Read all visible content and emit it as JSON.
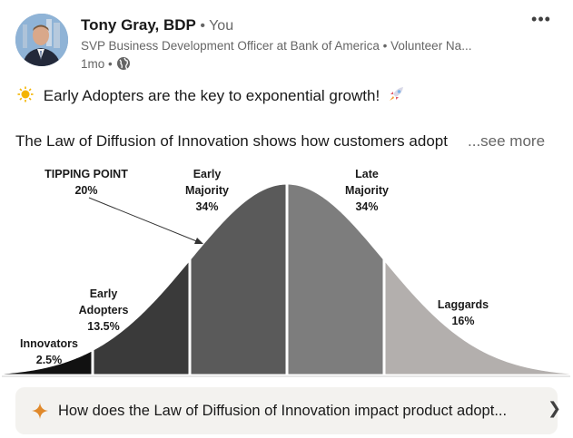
{
  "post": {
    "author_name": "Tony Gray, BDP",
    "author_relation": "• You",
    "headline": "SVP Business Development Officer at Bank of America • Volunteer Na...",
    "time": "1mo •",
    "menu_label": "•••",
    "line1": "Early Adopters are the key to exponential growth!",
    "line2": "The Law of Diffusion of Innovation shows how customers adopt",
    "see_more": "...see more"
  },
  "chart_data": {
    "type": "area",
    "title": "",
    "categories": [
      "Innovators",
      "Early Adopters",
      "Early Majority",
      "Late Majority",
      "Laggards"
    ],
    "values": [
      2.5,
      13.5,
      34,
      34,
      16
    ],
    "unit": "%",
    "segment_colors": [
      "#111111",
      "#3a3a3a",
      "#5a5a5a",
      "#7d7d7d",
      "#b3afad"
    ],
    "labels": {
      "innovators": [
        "Innovators",
        "2.5%"
      ],
      "early_adopters": [
        "Early",
        "Adopters",
        "13.5%"
      ],
      "early_majority": [
        "Early",
        "Majority",
        "34%"
      ],
      "late_majority": [
        "Late",
        "Majority",
        "34%"
      ],
      "laggards": [
        "Laggards",
        "16%"
      ]
    },
    "annotation": {
      "text": "TIPPING POINT",
      "value": "20%"
    }
  },
  "question": {
    "text": "How does the Law of Diffusion of Innovation impact product adopt...",
    "chevron": "❯"
  },
  "icons": {
    "sun": "sun-emoji",
    "rocket": "rocket-emoji",
    "spark": "sparkle-icon",
    "globe": "globe-icon"
  },
  "colors": {
    "accent_spark": "#e0892b",
    "muted_text": "#666666"
  }
}
